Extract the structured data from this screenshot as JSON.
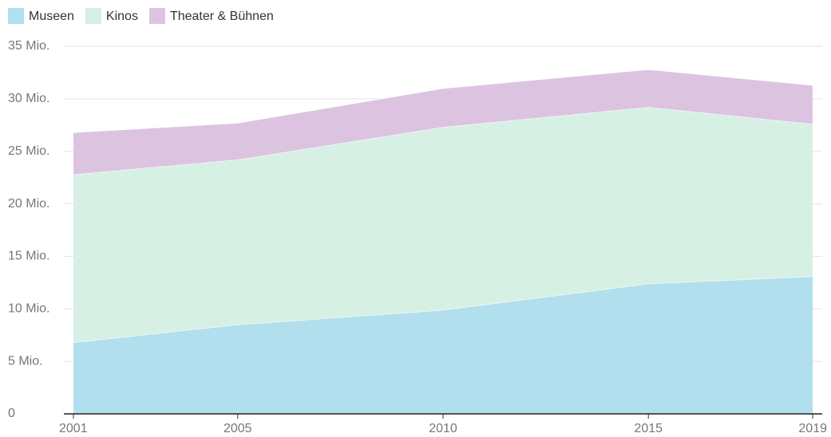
{
  "chart_data": {
    "type": "area",
    "stacked": true,
    "x": [
      2001,
      2005,
      2010,
      2015,
      2019
    ],
    "series": [
      {
        "name": "Museen",
        "color": "#b2dfee",
        "values": [
          6.8,
          8.5,
          9.9,
          12.4,
          13.1
        ]
      },
      {
        "name": "Kinos",
        "color": "#d6f0e4",
        "values": [
          16.0,
          15.7,
          17.4,
          16.8,
          14.5
        ]
      },
      {
        "name": "Theater & Bühnen",
        "color": "#dcc4e1",
        "values": [
          4.0,
          3.5,
          3.7,
          3.6,
          3.7
        ]
      }
    ],
    "xlim": [
      2001,
      2019
    ],
    "xticks": [
      2001,
      2005,
      2010,
      2015,
      2019
    ],
    "ylim": [
      0,
      35
    ],
    "yticks": [
      0,
      {
        "value": 5,
        "label": "5 Mio."
      },
      {
        "value": 10,
        "label": "10 Mio."
      },
      {
        "value": 15,
        "label": "15 Mio."
      },
      {
        "value": 20,
        "label": "20 Mio."
      },
      {
        "value": 25,
        "label": "25 Mio."
      },
      {
        "value": 30,
        "label": "30 Mio."
      },
      {
        "value": 35,
        "label": "35 Mio."
      }
    ],
    "grid": true,
    "legend": "top-left"
  }
}
